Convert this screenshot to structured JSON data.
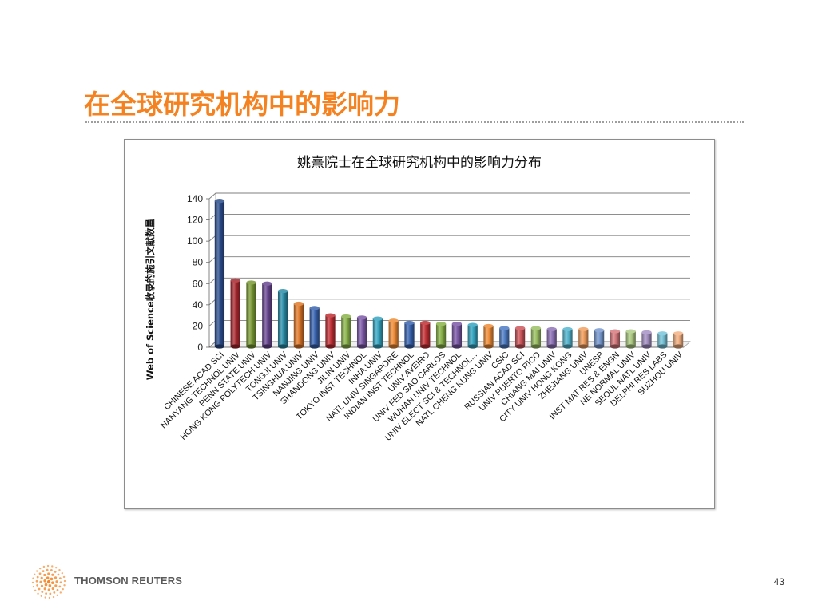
{
  "slide": {
    "title": "在全球研究机构中的影响力",
    "brand": "THOMSON REUTERS",
    "page_number": "43"
  },
  "colors": {
    "title": "#f58220",
    "brand_orange": "#f58220"
  },
  "chart_data": {
    "type": "bar",
    "title": "姚熹院士在全球研究机构中的影响力分布",
    "xlabel": "",
    "ylabel": "Web of Science收录的施引文献数量",
    "ylim": [
      0,
      140
    ],
    "yticks": [
      0,
      20,
      40,
      60,
      80,
      100,
      120,
      140
    ],
    "grid": true,
    "legend": "none",
    "categories": [
      "CHINESE ACAD SCI",
      "NANYANG TECHNOL UNIV",
      "PENN STATE UNIV",
      "HONG KONG POLYTECH UNIV",
      "TONGJI UNIV",
      "TSINGHUA UNIV",
      "NANJING UNIV",
      "SHANDONG UNIV",
      "JILIN UNIV",
      "TOKYO INST TECHNOL",
      "INHA UNIV",
      "NATL UNIV SINGAPORE",
      "INDIAN INST TECHNOL",
      "UNIV AVEIRO",
      "UNIV FED SAO CARLOS",
      "WUHAN UNIV TECHNOL",
      "UNIV ELECT SCI & TECHNOL...",
      "NATL CHENG KUNG UNIV",
      "CSIC",
      "RUSSIAN ACAD SCI",
      "UNIV PUERTO RICO",
      "CHIANG MAI UNIV",
      "CITY UNIV HONG KONG",
      "ZHEJIANG UNIV",
      "UNESP",
      "INST MAT RES & ENGN",
      "NE NORMAL UNIV",
      "SEOUL NATL UNIV",
      "DELPHI RES LABS",
      "SUZHOU UNIV"
    ],
    "values": [
      138,
      63,
      61,
      60,
      53,
      41,
      37,
      30,
      29,
      28,
      27,
      25,
      23,
      23,
      22,
      22,
      21,
      20,
      18,
      18,
      18,
      17,
      17,
      17,
      16,
      15,
      15,
      14,
      13,
      13
    ],
    "bar_colors": [
      "#2b4d8c",
      "#a8282f",
      "#7a9a34",
      "#6a4791",
      "#2a8ea8",
      "#e07a2a",
      "#3a64b0",
      "#c03035",
      "#8ab34a",
      "#7d5aa8",
      "#36a6c2",
      "#ef8c36",
      "#3a64b0",
      "#c03035",
      "#8ab34a",
      "#7d5aa8",
      "#36a6c2",
      "#ef8c36",
      "#4f7cc4",
      "#cc555a",
      "#9cc064",
      "#8f74b8",
      "#55b6cf",
      "#f2a060",
      "#7a9ad0",
      "#d67a7e",
      "#aecb84",
      "#a692c4",
      "#79c6da",
      "#f4b283"
    ]
  }
}
